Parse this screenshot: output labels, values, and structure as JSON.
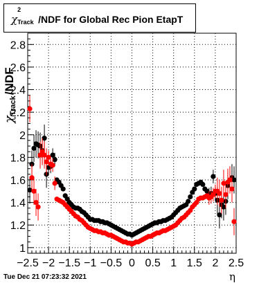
{
  "chart_data": {
    "type": "scatter",
    "title": "χ²_Track/NDF for Global Rec Pion EtapT",
    "title_parts": {
      "symbol": "χ",
      "sup": "2",
      "sub": "Track",
      "rest": "/NDF for Global Rec Pion EtapT"
    },
    "ylabel_parts": {
      "symbol": "χ",
      "sup": "2",
      "sub": "Track",
      "rest": "/NDF"
    },
    "xlabel": "η",
    "xlim": [
      -2.5,
      2.5
    ],
    "ylim": [
      0.95,
      2.9
    ],
    "x_ticks": [
      -2.5,
      -2,
      -1.5,
      -1,
      -0.5,
      0,
      0.5,
      1,
      1.5,
      2,
      2.5
    ],
    "x_tick_labels": [
      "−2.5",
      "−2",
      "−1.5",
      "−1",
      "−0.5",
      "0",
      "0.5",
      "1",
      "1.5",
      "2",
      "2.5"
    ],
    "y_ticks": [
      1,
      1.2,
      1.4,
      1.6,
      1.8,
      2,
      2.2,
      2.4,
      2.6,
      2.8
    ],
    "y_tick_labels": [
      "1",
      "1.2",
      "1.4",
      "1.6",
      "1.8",
      "2",
      "2.2",
      "2.4",
      "2.6",
      "2.8"
    ],
    "grid": true,
    "colors": {
      "series_black": "#000000",
      "series_red": "#ff0000"
    },
    "timestamp": "Tue Dec 21 07:23:32 2021",
    "series": [
      {
        "color": "#000000",
        "x": [
          -2.45,
          -2.4,
          -2.35,
          -2.3,
          -2.25,
          -2.2,
          -2.15,
          -2.1,
          -2.05,
          -2.0,
          -1.95,
          -1.9,
          -1.85,
          -1.8,
          -1.75,
          -1.7,
          -1.65,
          -1.6,
          -1.55,
          -1.5,
          -1.45,
          -1.4,
          -1.35,
          -1.3,
          -1.25,
          -1.2,
          -1.15,
          -1.1,
          -1.05,
          -1.0,
          -0.95,
          -0.9,
          -0.85,
          -0.8,
          -0.75,
          -0.7,
          -0.65,
          -0.6,
          -0.55,
          -0.5,
          -0.45,
          -0.4,
          -0.35,
          -0.3,
          -0.25,
          -0.2,
          -0.15,
          -0.1,
          -0.05,
          0.0,
          0.05,
          0.1,
          0.15,
          0.2,
          0.25,
          0.3,
          0.35,
          0.4,
          0.45,
          0.5,
          0.55,
          0.6,
          0.65,
          0.7,
          0.75,
          0.8,
          0.85,
          0.9,
          0.95,
          1.0,
          1.05,
          1.1,
          1.15,
          1.2,
          1.25,
          1.3,
          1.35,
          1.4,
          1.45,
          1.5,
          1.55,
          1.6,
          1.65,
          1.7,
          1.75,
          1.8,
          1.85,
          1.9,
          1.95,
          2.0,
          2.05,
          2.1,
          2.15,
          2.2,
          2.25,
          2.3,
          2.35,
          2.4,
          2.45
        ],
        "y": [
          1.51,
          1.74,
          1.88,
          1.92,
          1.91,
          1.9,
          1.86,
          1.97,
          1.65,
          1.71,
          1.72,
          1.82,
          1.78,
          1.6,
          1.58,
          1.55,
          1.52,
          1.46,
          1.43,
          1.4,
          1.38,
          1.36,
          1.35,
          1.35,
          1.34,
          1.32,
          1.31,
          1.29,
          1.27,
          1.25,
          1.25,
          1.24,
          1.24,
          1.24,
          1.23,
          1.23,
          1.22,
          1.22,
          1.21,
          1.2,
          1.19,
          1.18,
          1.17,
          1.16,
          1.15,
          1.14,
          1.13,
          1.12,
          1.12,
          1.11,
          1.12,
          1.13,
          1.14,
          1.15,
          1.16,
          1.17,
          1.18,
          1.19,
          1.2,
          1.21,
          1.22,
          1.22,
          1.23,
          1.23,
          1.24,
          1.24,
          1.25,
          1.26,
          1.27,
          1.29,
          1.31,
          1.33,
          1.35,
          1.36,
          1.37,
          1.38,
          1.41,
          1.45,
          1.49,
          1.52,
          1.56,
          1.57,
          1.58,
          1.56,
          1.52,
          1.5,
          1.47,
          1.48,
          1.63,
          1.48,
          1.42,
          1.29,
          1.38,
          1.36,
          1.41,
          1.55,
          1.6,
          1.62,
          1.6
        ]
      },
      {
        "color": "#ff0000",
        "x": [
          -2.45,
          -2.4,
          -2.35,
          -2.3,
          -2.25,
          -2.2,
          -2.15,
          -2.1,
          -2.05,
          -2.0,
          -1.95,
          -1.9,
          -1.85,
          -1.8,
          -1.75,
          -1.7,
          -1.65,
          -1.6,
          -1.55,
          -1.5,
          -1.45,
          -1.4,
          -1.35,
          -1.3,
          -1.25,
          -1.2,
          -1.15,
          -1.1,
          -1.05,
          -1.0,
          -0.95,
          -0.9,
          -0.85,
          -0.8,
          -0.75,
          -0.7,
          -0.65,
          -0.6,
          -0.55,
          -0.5,
          -0.45,
          -0.4,
          -0.35,
          -0.3,
          -0.25,
          -0.2,
          -0.15,
          -0.1,
          -0.05,
          0.0,
          0.05,
          0.1,
          0.15,
          0.2,
          0.25,
          0.3,
          0.35,
          0.4,
          0.45,
          0.5,
          0.55,
          0.6,
          0.65,
          0.7,
          0.75,
          0.8,
          0.85,
          0.9,
          0.95,
          1.0,
          1.05,
          1.1,
          1.15,
          1.2,
          1.25,
          1.3,
          1.35,
          1.4,
          1.45,
          1.5,
          1.55,
          1.6,
          1.65,
          1.7,
          1.75,
          1.8,
          1.85,
          1.9,
          1.95,
          2.0,
          2.05,
          2.1,
          2.15,
          2.2,
          2.25,
          2.3,
          2.35,
          2.4,
          2.45
        ],
        "y": [
          2.23,
          1.62,
          1.5,
          1.4,
          1.36,
          1.82,
          1.85,
          1.82,
          1.76,
          1.8,
          1.74,
          1.73,
          1.57,
          1.43,
          1.42,
          1.41,
          1.4,
          1.38,
          1.36,
          1.34,
          1.32,
          1.3,
          1.28,
          1.27,
          1.25,
          1.24,
          1.22,
          1.2,
          1.18,
          1.17,
          1.16,
          1.15,
          1.15,
          1.14,
          1.14,
          1.13,
          1.13,
          1.12,
          1.11,
          1.11,
          1.1,
          1.09,
          1.08,
          1.07,
          1.06,
          1.05,
          1.05,
          1.04,
          1.04,
          1.03,
          1.04,
          1.05,
          1.05,
          1.06,
          1.07,
          1.08,
          1.09,
          1.1,
          1.1,
          1.11,
          1.12,
          1.13,
          1.13,
          1.14,
          1.15,
          1.15,
          1.16,
          1.17,
          1.18,
          1.19,
          1.2,
          1.22,
          1.24,
          1.26,
          1.27,
          1.29,
          1.31,
          1.33,
          1.36,
          1.38,
          1.4,
          1.43,
          1.44,
          1.44,
          1.45,
          1.46,
          1.44,
          1.45,
          1.47,
          1.5,
          1.5,
          1.48,
          1.42,
          1.57,
          1.47,
          1.58,
          1.6,
          1.52,
          1.23
        ]
      }
    ]
  }
}
